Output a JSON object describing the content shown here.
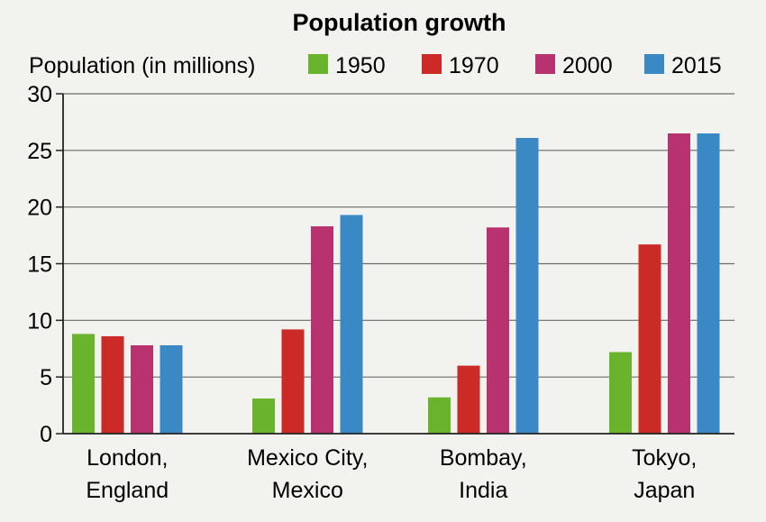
{
  "chart_data": {
    "type": "bar",
    "title": "Population growth",
    "ylabel": "Population (in millions)",
    "xlabel": "",
    "categories": [
      [
        "London,",
        "England"
      ],
      [
        "Mexico City,",
        "Mexico"
      ],
      [
        "Bombay,",
        "India"
      ],
      [
        "Tokyo,",
        "Japan"
      ]
    ],
    "series": [
      {
        "name": "1950",
        "color": "#6ab42d",
        "values": [
          8.8,
          3.1,
          3.2,
          7.2
        ]
      },
      {
        "name": "1970",
        "color": "#cc2a26",
        "values": [
          8.6,
          9.2,
          6.0,
          16.7
        ]
      },
      {
        "name": "2000",
        "color": "#b83270",
        "values": [
          7.8,
          18.3,
          18.2,
          26.5
        ]
      },
      {
        "name": "2015",
        "color": "#3a88c4",
        "values": [
          7.8,
          19.3,
          26.1,
          26.5
        ]
      }
    ],
    "ylim": [
      0,
      30
    ],
    "yticks": [
      "0",
      "5",
      "10",
      "15",
      "20",
      "25",
      "30"
    ],
    "grid": true,
    "legend": "top"
  }
}
